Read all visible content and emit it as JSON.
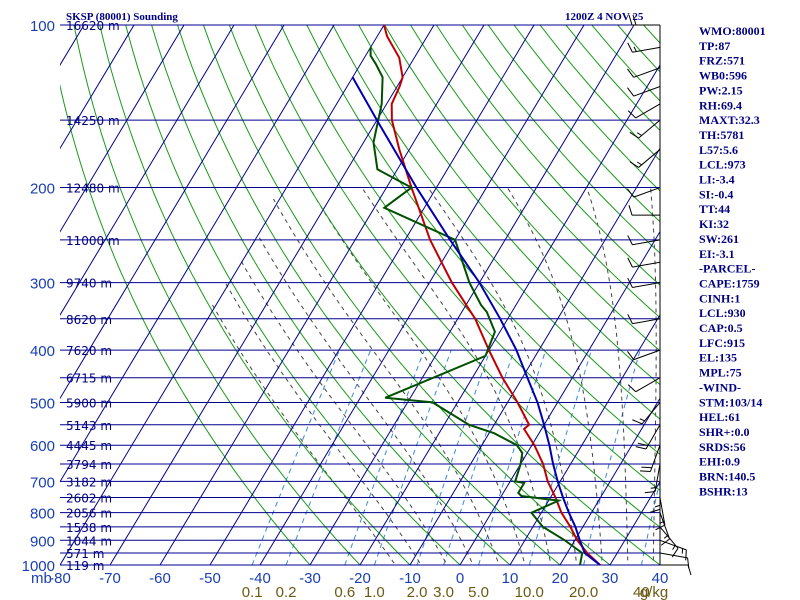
{
  "header": {
    "station_title": "SKSP (80001) Sounding",
    "valid_time": "1200Z  4 NOV 25"
  },
  "colors": {
    "isobar": "#000090",
    "isotherm": "#000090",
    "dry_adiabat": "#1a9a1a",
    "moist_adiabat": "#444444",
    "mixing_ratio": "#3a8ad8",
    "temperature": "#c00000",
    "dewpoint": "#005000",
    "parcel": "#0000b0",
    "wind": "#000000"
  },
  "chart_data": {
    "type": "line",
    "title": "SKSP (80001) Sounding",
    "xlabel": "",
    "ylabel": "mb",
    "x_unit": "C",
    "y_scale": "log-pressure",
    "xlim": [
      -80,
      40
    ],
    "ylim": [
      1000,
      100
    ],
    "temperature_ticks": [
      -80,
      -70,
      -60,
      -50,
      -40,
      -30,
      -20,
      -10,
      0,
      10,
      20,
      30,
      40
    ],
    "temperature_tick_labels": [
      "-80",
      "-70",
      "-60",
      "-50",
      "-40",
      "-30",
      "-20",
      "-10",
      "0",
      "10",
      "20",
      "30",
      "40"
    ],
    "pressure_labels": [
      100,
      200,
      300,
      400,
      500,
      600,
      700,
      800,
      900,
      1000
    ],
    "pressure_tick_labels": [
      "100",
      "200",
      "300",
      "400",
      "500",
      "600",
      "700",
      "800",
      "900",
      "1000"
    ],
    "mb_label": "mb",
    "height_labels": [
      {
        "p": 100,
        "label": "16620 m"
      },
      {
        "p": 150,
        "label": "14250 m"
      },
      {
        "p": 200,
        "label": "12480 m"
      },
      {
        "p": 250,
        "label": "11000 m"
      },
      {
        "p": 300,
        "label": "9740 m"
      },
      {
        "p": 350,
        "label": "8620 m"
      },
      {
        "p": 400,
        "label": "7620 m"
      },
      {
        "p": 450,
        "label": "6715 m"
      },
      {
        "p": 500,
        "label": "5900 m"
      },
      {
        "p": 550,
        "label": "5143 m"
      },
      {
        "p": 600,
        "label": "4445 m"
      },
      {
        "p": 650,
        "label": "3794 m"
      },
      {
        "p": 700,
        "label": "3182 m"
      },
      {
        "p": 750,
        "label": "2602 m"
      },
      {
        "p": 800,
        "label": "2056 m"
      },
      {
        "p": 850,
        "label": "1538 m"
      },
      {
        "p": 900,
        "label": "1044 m"
      },
      {
        "p": 950,
        "label": "571 m"
      },
      {
        "p": 1000,
        "label": "119 m"
      }
    ],
    "mixing_ratio_labels": [
      {
        "w": 0.1,
        "label": "0.1"
      },
      {
        "w": 0.2,
        "label": "0.2"
      },
      {
        "w": 0.6,
        "label": "0.6"
      },
      {
        "w": 1.0,
        "label": "1.0"
      },
      {
        "w": 2.0,
        "label": "2.0"
      },
      {
        "w": 3.0,
        "label": "3.0"
      },
      {
        "w": 5.0,
        "label": "5.0"
      },
      {
        "w": 10.0,
        "label": "10.0"
      },
      {
        "w": 20.0,
        "label": "20.0"
      },
      {
        "w": 40.0,
        "label": "40"
      }
    ],
    "mixing_ratio_unit": "g/kg",
    "series": [
      {
        "key": "temperature",
        "points": [
          [
            1005,
            29.0
          ],
          [
            1000,
            28.0
          ],
          [
            950,
            24.0
          ],
          [
            900,
            20.5
          ],
          [
            850,
            17.5
          ],
          [
            800,
            14.0
          ],
          [
            750,
            11.0
          ],
          [
            700,
            7.5
          ],
          [
            650,
            4.5
          ],
          [
            600,
            0.5
          ],
          [
            560,
            -3.5
          ],
          [
            550,
            -3.0
          ],
          [
            500,
            -8.0
          ],
          [
            450,
            -14.0
          ],
          [
            400,
            -20.0
          ],
          [
            350,
            -26.5
          ],
          [
            300,
            -35.5
          ],
          [
            250,
            -45.0
          ],
          [
            200,
            -55.0
          ],
          [
            170,
            -62.0
          ],
          [
            150,
            -67.0
          ],
          [
            140,
            -69.0
          ],
          [
            130,
            -69.5
          ],
          [
            125,
            -70.0
          ],
          [
            115,
            -73.0
          ],
          [
            105,
            -78.0
          ],
          [
            100,
            -80.0
          ]
        ]
      },
      {
        "key": "dewpoint",
        "points": [
          [
            1000,
            24.0
          ],
          [
            950,
            23.0
          ],
          [
            900,
            18.0
          ],
          [
            850,
            12.0
          ],
          [
            800,
            8.0
          ],
          [
            780,
            10.0
          ],
          [
            760,
            12.0
          ],
          [
            745,
            4.0
          ],
          [
            735,
            3.0
          ],
          [
            705,
            3.0
          ],
          [
            700,
            1.0
          ],
          [
            650,
            0.0
          ],
          [
            620,
            -1.0
          ],
          [
            600,
            -3.0
          ],
          [
            570,
            -9.0
          ],
          [
            550,
            -15.0
          ],
          [
            500,
            -25.0
          ],
          [
            490,
            -35.0
          ],
          [
            410,
            -20.0
          ],
          [
            370,
            -21.0
          ],
          [
            340,
            -25.0
          ],
          [
            330,
            -27.0
          ],
          [
            300,
            -32.0
          ],
          [
            250,
            -40.0
          ],
          [
            218,
            -58.0
          ],
          [
            200,
            -55.0
          ],
          [
            185,
            -64.0
          ],
          [
            165,
            -68.0
          ],
          [
            140,
            -71.0
          ],
          [
            125,
            -74.0
          ],
          [
            118,
            -77.0
          ],
          [
            114,
            -79.0
          ],
          [
            110,
            -80.0
          ]
        ]
      },
      {
        "key": "parcel",
        "points": [
          [
            1000,
            28.0
          ],
          [
            950,
            23.5
          ],
          [
            900,
            21.0
          ],
          [
            850,
            18.5
          ],
          [
            800,
            15.5
          ],
          [
            750,
            12.5
          ],
          [
            700,
            9.5
          ],
          [
            650,
            6.5
          ],
          [
            600,
            3.5
          ],
          [
            550,
            0.0
          ],
          [
            500,
            -4.0
          ],
          [
            450,
            -9.0
          ],
          [
            400,
            -14.5
          ],
          [
            350,
            -21.5
          ],
          [
            300,
            -30.0
          ],
          [
            250,
            -41.0
          ],
          [
            200,
            -54.0
          ],
          [
            150,
            -70.0
          ],
          [
            125,
            -80.0
          ]
        ]
      }
    ],
    "wind_barbs": [
      {
        "p": 100,
        "dir": 270,
        "kt": 20
      },
      {
        "p": 110,
        "dir": 260,
        "kt": 15
      },
      {
        "p": 120,
        "dir": 250,
        "kt": 10
      },
      {
        "p": 130,
        "dir": 250,
        "kt": 10
      },
      {
        "p": 140,
        "dir": 240,
        "kt": 10
      },
      {
        "p": 150,
        "dir": 230,
        "kt": 15
      },
      {
        "p": 170,
        "dir": 230,
        "kt": 15
      },
      {
        "p": 200,
        "dir": 250,
        "kt": 10
      },
      {
        "p": 225,
        "dir": 270,
        "kt": 10
      },
      {
        "p": 250,
        "dir": 260,
        "kt": 10
      },
      {
        "p": 275,
        "dir": 260,
        "kt": 10
      },
      {
        "p": 300,
        "dir": 260,
        "kt": 10
      },
      {
        "p": 350,
        "dir": 260,
        "kt": 10
      },
      {
        "p": 400,
        "dir": 250,
        "kt": 10
      },
      {
        "p": 450,
        "dir": 240,
        "kt": 10
      },
      {
        "p": 500,
        "dir": 220,
        "kt": 15
      },
      {
        "p": 550,
        "dir": 210,
        "kt": 20
      },
      {
        "p": 600,
        "dir": 200,
        "kt": 20
      },
      {
        "p": 650,
        "dir": 190,
        "kt": 15
      },
      {
        "p": 700,
        "dir": 180,
        "kt": 15
      },
      {
        "p": 750,
        "dir": 170,
        "kt": 15
      },
      {
        "p": 800,
        "dir": 160,
        "kt": 15
      },
      {
        "p": 850,
        "dir": 140,
        "kt": 15
      },
      {
        "p": 900,
        "dir": 110,
        "kt": 15
      },
      {
        "p": 950,
        "dir": 100,
        "kt": 10
      },
      {
        "p": 1000,
        "dir": 90,
        "kt": 10
      }
    ]
  },
  "indices": [
    "WMO:80001",
    "TP:87",
    "FRZ:571",
    "WB0:596",
    "PW:2.15",
    "RH:69.4",
    "MAXT:32.3",
    "TH:5781",
    "L57:5.6",
    "LCL:973",
    "LI:-3.4",
    "SI:-0.4",
    "TT:44",
    "KI:32",
    "SW:261",
    "EI:-3.1",
    "-PARCEL-",
    "CAPE:1759",
    "CINH:1",
    "LCL:930",
    "CAP:0.5",
    "LFC:915",
    "EL:135",
    "MPL:75",
    "-WIND-",
    "STM:103/14",
    "HEL:61",
    "SHR+:0.0",
    "SRDS:56",
    "EHI:0.9",
    "BRN:140.5",
    "BSHR:13"
  ]
}
